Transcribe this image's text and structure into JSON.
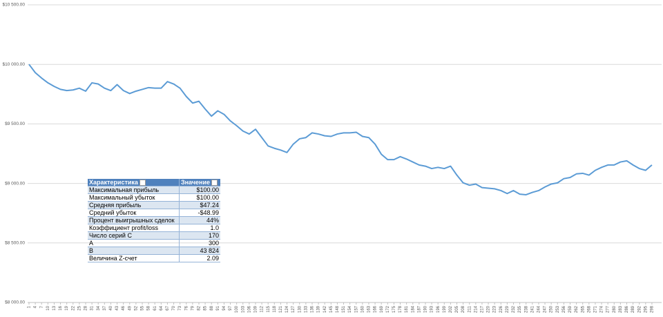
{
  "chart_data": {
    "type": "line",
    "x": [
      1,
      4,
      7,
      10,
      13,
      16,
      19,
      22,
      25,
      28,
      31,
      34,
      37,
      40,
      43,
      46,
      49,
      52,
      55,
      58,
      61,
      64,
      67,
      70,
      73,
      76,
      79,
      82,
      85,
      88,
      91,
      94,
      97,
      100,
      103,
      106,
      109,
      112,
      115,
      118,
      121,
      124,
      127,
      130,
      133,
      136,
      139,
      142,
      145,
      148,
      151,
      154,
      157,
      160,
      163,
      166,
      169,
      172,
      175,
      178,
      181,
      184,
      187,
      190,
      193,
      196,
      199,
      202,
      205,
      208,
      211,
      214,
      217,
      220,
      223,
      226,
      229,
      232,
      235,
      238,
      241,
      244,
      247,
      250,
      253,
      256,
      259,
      262,
      265,
      268,
      271,
      274,
      277,
      280,
      283,
      286,
      289,
      292,
      295,
      298
    ],
    "series": [
      {
        "color": "#5b9bd5",
        "values": [
          10000,
          9930,
          9885,
          9845,
          9815,
          9790,
          9780,
          9785,
          9800,
          9775,
          9845,
          9835,
          9800,
          9780,
          9830,
          9780,
          9755,
          9775,
          9790,
          9805,
          9800,
          9800,
          9855,
          9835,
          9800,
          9730,
          9675,
          9690,
          9625,
          9565,
          9610,
          9580,
          9525,
          9485,
          9440,
          9415,
          9455,
          9385,
          9315,
          9295,
          9280,
          9260,
          9330,
          9375,
          9385,
          9425,
          9415,
          9400,
          9395,
          9415,
          9425,
          9425,
          9430,
          9395,
          9385,
          9330,
          9245,
          9200,
          9200,
          9225,
          9205,
          9180,
          9155,
          9145,
          9125,
          9135,
          9125,
          9145,
          9070,
          9005,
          8985,
          8995,
          8965,
          8960,
          8955,
          8940,
          8915,
          8940,
          8910,
          8905,
          8925,
          8940,
          8970,
          8995,
          9005,
          9040,
          9050,
          9080,
          9085,
          9070,
          9110,
          9135,
          9155,
          9155,
          9180,
          9190,
          9155,
          9125,
          9110,
          9155
        ]
      }
    ],
    "xlim": [
      1,
      300
    ],
    "ylim": [
      8000,
      10500
    ],
    "yticks": [
      {
        "value": 8000,
        "label": "$8 000.00"
      },
      {
        "value": 8500,
        "label": "$8 500.00"
      },
      {
        "value": 9000,
        "label": "$9 000.00"
      },
      {
        "value": 9500,
        "label": "$9 500.00"
      },
      {
        "value": 10000,
        "label": "$10 000.00"
      },
      {
        "value": 10500,
        "label": "$10 500.00"
      }
    ],
    "grid": true
  },
  "table": {
    "header": [
      "Характеристика",
      "Значение"
    ],
    "rows": [
      [
        "Максимальная прибыль",
        "$100.00"
      ],
      [
        "Максимальный убыток",
        "$100.00"
      ],
      [
        "Средняя прибыль",
        "$47.24"
      ],
      [
        "Средний убыток",
        "-$48.99"
      ],
      [
        "Процент выигрышных сделок",
        "44%"
      ],
      [
        "Коэффициент profit/loss",
        "1.0"
      ],
      [
        "Число серий С",
        "170"
      ],
      [
        "A",
        "300"
      ],
      [
        "B",
        "43 824"
      ],
      [
        "Величина Z-счет",
        "2.09"
      ]
    ]
  }
}
